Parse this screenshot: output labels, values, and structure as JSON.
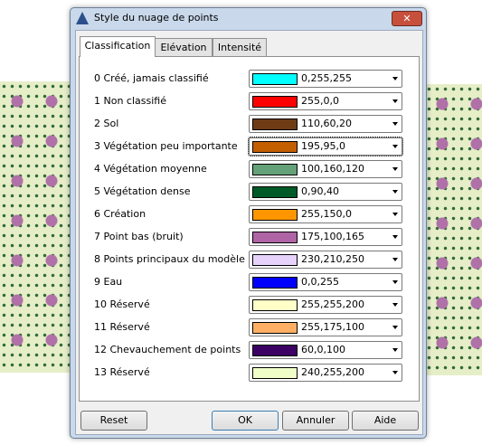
{
  "window": {
    "title": "Style du nuage de points"
  },
  "tabs": [
    "Classification",
    "Elévation",
    "Intensité"
  ],
  "rows": [
    {
      "label": "0 Créé, jamais classifié",
      "color": "0,255,255"
    },
    {
      "label": "1 Non classifié",
      "color": "255,0,0"
    },
    {
      "label": "2 Sol",
      "color": "110,60,20"
    },
    {
      "label": "3 Végétation peu importante",
      "color": "195,95,0"
    },
    {
      "label": "4 Végétation moyenne",
      "color": "100,160,120"
    },
    {
      "label": "5 Végétation dense",
      "color": "0,90,40"
    },
    {
      "label": "6 Création",
      "color": "255,150,0"
    },
    {
      "label": "7 Point bas (bruit)",
      "color": "175,100,165"
    },
    {
      "label": "8 Points principaux du modèle",
      "color": "230,210,250"
    },
    {
      "label": "9 Eau",
      "color": "0,0,255"
    },
    {
      "label": "10 Réservé",
      "color": "255,255,200"
    },
    {
      "label": "11 Réservé",
      "color": "255,175,100"
    },
    {
      "label": "12 Chevauchement de points",
      "color": "60,0,100"
    },
    {
      "label": "13 Réservé",
      "color": "240,255,200"
    }
  ],
  "buttons": [
    "Reset",
    "OK",
    "Annuler",
    "Aide"
  ]
}
